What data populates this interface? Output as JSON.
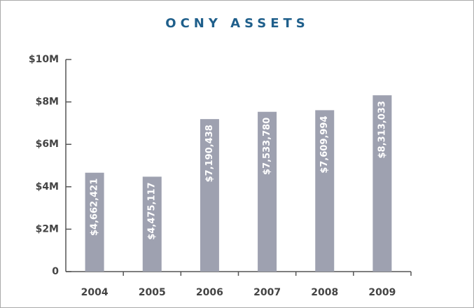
{
  "chart_data": {
    "type": "bar",
    "title": "OCNY ASSETS",
    "categories": [
      "2004",
      "2005",
      "2006",
      "2007",
      "2008",
      "2009"
    ],
    "values": [
      4662421,
      4475117,
      7190438,
      7533780,
      7609994,
      8313033
    ],
    "value_labels": [
      "$4,662,421",
      "$4,475,117",
      "$7,190,438",
      "$7,533,780",
      "$7,609,994",
      "$8,313,033"
    ],
    "color": "#9ea1b0",
    "ylim": [
      0,
      10000000
    ],
    "yticks": [
      0,
      {
        "value": 2000000,
        "label": "$2M"
      },
      {
        "value": 4000000,
        "label": "$4M"
      },
      {
        "value": 6000000,
        "label": "$6M"
      },
      {
        "value": 8000000,
        "label": "$8M"
      },
      {
        "value": 10000000,
        "label": "$10M"
      }
    ],
    "grid": false
  }
}
